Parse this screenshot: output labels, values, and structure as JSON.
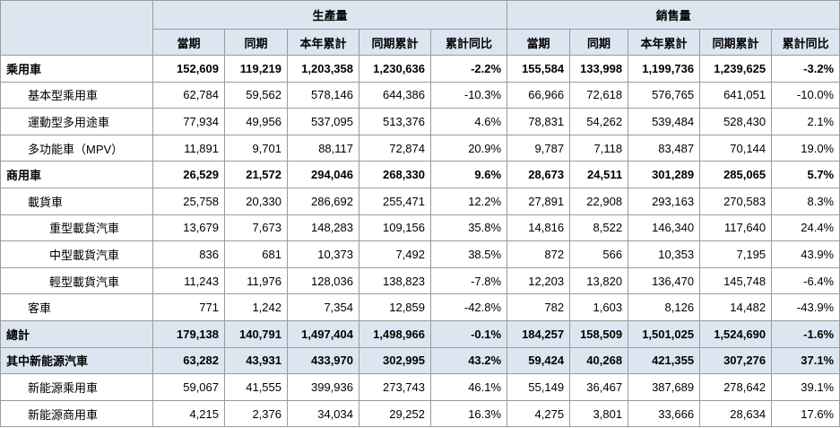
{
  "table": {
    "groups": [
      "生產量",
      "銷售量"
    ],
    "columns": [
      "當期",
      "同期",
      "本年累計",
      "同期累計",
      "累計同比",
      "當期",
      "同期",
      "本年累計",
      "同期累計",
      "累計同比"
    ],
    "rows": [
      {
        "label": "乘用車",
        "level": 0,
        "highlight": false,
        "cells": [
          "152,609",
          "119,219",
          "1,203,358",
          "1,230,636",
          "-2.2%",
          "155,584",
          "133,998",
          "1,199,736",
          "1,239,625",
          "-3.2%"
        ]
      },
      {
        "label": "基本型乘用車",
        "level": 1,
        "highlight": false,
        "cells": [
          "62,784",
          "59,562",
          "578,146",
          "644,386",
          "-10.3%",
          "66,966",
          "72,618",
          "576,765",
          "641,051",
          "-10.0%"
        ]
      },
      {
        "label": "運動型多用途車",
        "level": 1,
        "highlight": false,
        "cells": [
          "77,934",
          "49,956",
          "537,095",
          "513,376",
          "4.6%",
          "78,831",
          "54,262",
          "539,484",
          "528,430",
          "2.1%"
        ]
      },
      {
        "label": "多功能車（MPV）",
        "level": 1,
        "highlight": false,
        "cells": [
          "11,891",
          "9,701",
          "88,117",
          "72,874",
          "20.9%",
          "9,787",
          "7,118",
          "83,487",
          "70,144",
          "19.0%"
        ]
      },
      {
        "label": "商用車",
        "level": 0,
        "highlight": false,
        "cells": [
          "26,529",
          "21,572",
          "294,046",
          "268,330",
          "9.6%",
          "28,673",
          "24,511",
          "301,289",
          "285,065",
          "5.7%"
        ]
      },
      {
        "label": "載貨車",
        "level": 1,
        "highlight": false,
        "cells": [
          "25,758",
          "20,330",
          "286,692",
          "255,471",
          "12.2%",
          "27,891",
          "22,908",
          "293,163",
          "270,583",
          "8.3%"
        ]
      },
      {
        "label": "重型載貨汽車",
        "level": 2,
        "highlight": false,
        "cells": [
          "13,679",
          "7,673",
          "148,283",
          "109,156",
          "35.8%",
          "14,816",
          "8,522",
          "146,340",
          "117,640",
          "24.4%"
        ]
      },
      {
        "label": "中型載貨汽車",
        "level": 2,
        "highlight": false,
        "cells": [
          "836",
          "681",
          "10,373",
          "7,492",
          "38.5%",
          "872",
          "566",
          "10,353",
          "7,195",
          "43.9%"
        ]
      },
      {
        "label": "輕型載貨汽車",
        "level": 2,
        "highlight": false,
        "cells": [
          "11,243",
          "11,976",
          "128,036",
          "138,823",
          "-7.8%",
          "12,203",
          "13,820",
          "136,470",
          "145,748",
          "-6.4%"
        ]
      },
      {
        "label": "客車",
        "level": 1,
        "highlight": false,
        "cells": [
          "771",
          "1,242",
          "7,354",
          "12,859",
          "-42.8%",
          "782",
          "1,603",
          "8,126",
          "14,482",
          "-43.9%"
        ]
      },
      {
        "label": "總計",
        "level": 0,
        "highlight": true,
        "cells": [
          "179,138",
          "140,791",
          "1,497,404",
          "1,498,966",
          "-0.1%",
          "184,257",
          "158,509",
          "1,501,025",
          "1,524,690",
          "-1.6%"
        ]
      },
      {
        "label": "其中新能源汽車",
        "level": 0,
        "highlight": true,
        "cells": [
          "63,282",
          "43,931",
          "433,970",
          "302,995",
          "43.2%",
          "59,424",
          "40,268",
          "421,355",
          "307,276",
          "37.1%"
        ]
      },
      {
        "label": "新能源乘用車",
        "level": 1,
        "highlight": false,
        "cells": [
          "59,067",
          "41,555",
          "399,936",
          "273,743",
          "46.1%",
          "55,149",
          "36,467",
          "387,689",
          "278,642",
          "39.1%"
        ]
      },
      {
        "label": "新能源商用車",
        "level": 1,
        "highlight": false,
        "cells": [
          "4,215",
          "2,376",
          "34,034",
          "29,252",
          "16.3%",
          "4,275",
          "3,801",
          "33,666",
          "28,634",
          "17.6%"
        ]
      }
    ]
  }
}
